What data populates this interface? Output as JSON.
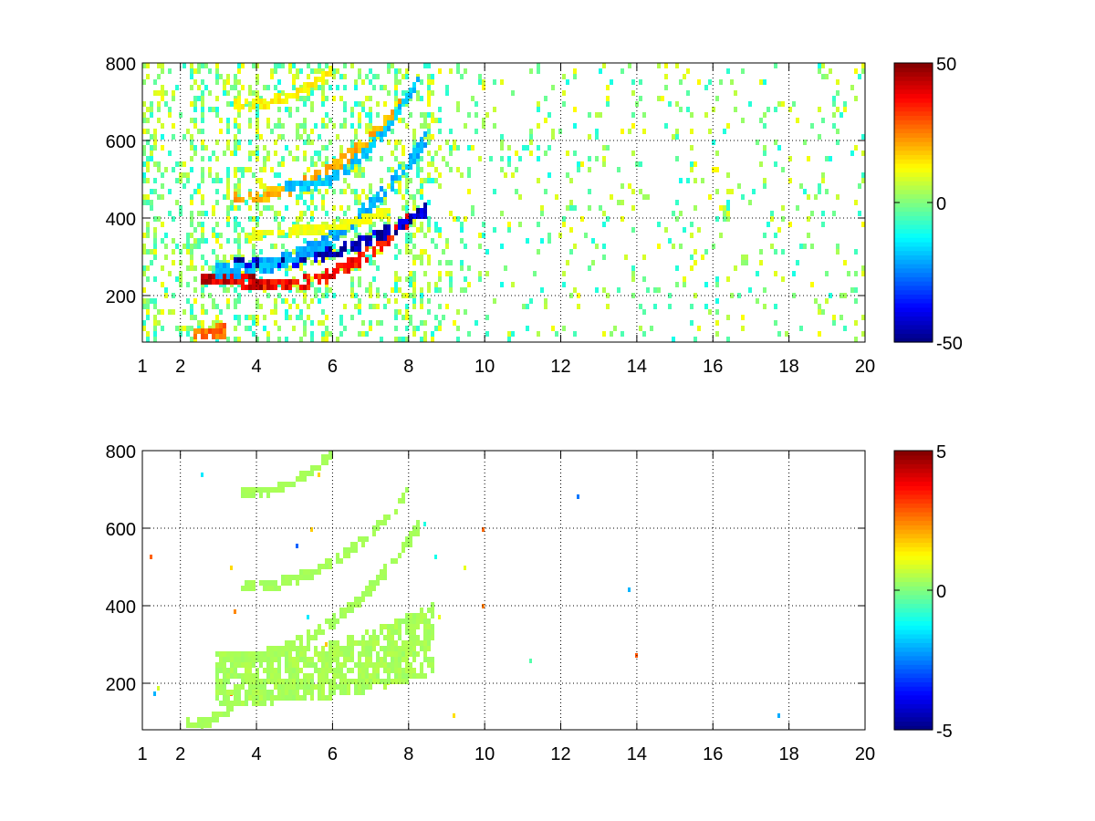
{
  "chart_data": [
    {
      "type": "heatmap",
      "title": "",
      "xlabel": "",
      "ylabel": "",
      "xlim": [
        1,
        20
      ],
      "ylim": [
        80,
        800
      ],
      "x_ticks": [
        1,
        2,
        4,
        6,
        8,
        10,
        12,
        14,
        16,
        18,
        20
      ],
      "y_ticks": [
        200,
        400,
        600,
        800
      ],
      "grid": true,
      "colormap": "jet",
      "colorbar": {
        "range": [
          -50,
          50
        ],
        "ticks": [
          50,
          0,
          -50
        ]
      },
      "features": [
        {
          "kind": "arc",
          "value": 45,
          "x_start": 2.6,
          "x_end": 4.2,
          "y_start": 245,
          "y_end": 225,
          "thickness": 22
        },
        {
          "kind": "arc",
          "value": 40,
          "x_start": 4.2,
          "x_end": 8.0,
          "y_start": 225,
          "y_end": 400,
          "thickness": 18
        },
        {
          "kind": "arc",
          "value": -48,
          "x_start": 3.4,
          "x_end": 8.4,
          "y_start": 280,
          "y_end": 420,
          "thickness": 16
        },
        {
          "kind": "arc",
          "value": -22,
          "x_start": 3.0,
          "x_end": 8.4,
          "y_start": 265,
          "y_end": 600,
          "thickness": 22
        },
        {
          "kind": "arc",
          "value": 22,
          "x_start": 3.4,
          "x_end": 7.8,
          "y_start": 455,
          "y_end": 700,
          "thickness": 18
        },
        {
          "kind": "arc",
          "value": -20,
          "x_start": 4.8,
          "x_end": 8.2,
          "y_start": 480,
          "y_end": 760,
          "thickness": 14
        },
        {
          "kind": "arc",
          "value": 15,
          "x_start": 3.4,
          "x_end": 5.9,
          "y_start": 690,
          "y_end": 780,
          "thickness": 12
        },
        {
          "kind": "arc",
          "value": 30,
          "x_start": 2.4,
          "x_end": 3.2,
          "y_start": 100,
          "y_end": 115,
          "thickness": 22
        },
        {
          "kind": "arc",
          "value": 12,
          "x_start": 3.8,
          "x_end": 7.5,
          "y_start": 360,
          "y_end": 420,
          "thickness": 10
        }
      ]
    },
    {
      "type": "heatmap",
      "title": "",
      "xlabel": "",
      "ylabel": "",
      "xlim": [
        1,
        20
      ],
      "ylim": [
        80,
        800
      ],
      "x_ticks": [
        1,
        2,
        4,
        6,
        8,
        10,
        12,
        14,
        16,
        18,
        20
      ],
      "y_ticks": [
        200,
        400,
        600,
        800
      ],
      "grid": true,
      "colormap": "jet",
      "colorbar": {
        "range": [
          -5,
          5
        ],
        "ticks": [
          5,
          0,
          -5
        ]
      },
      "features": [
        {
          "kind": "region",
          "value": 0.4,
          "x_start": 3.0,
          "x_end": 8.6,
          "y_low_start": 150,
          "y_low_end": 230,
          "y_high_start": 270,
          "y_high_end": 400
        },
        {
          "kind": "arc",
          "value": 0.4,
          "x_start": 3.0,
          "x_end": 8.2,
          "y_start": 260,
          "y_end": 600,
          "thickness": 16
        },
        {
          "kind": "arc",
          "value": 0.4,
          "x_start": 3.6,
          "x_end": 8.0,
          "y_start": 450,
          "y_end": 700,
          "thickness": 14
        },
        {
          "kind": "arc",
          "value": 0.4,
          "x_start": 3.6,
          "x_end": 5.9,
          "y_start": 690,
          "y_end": 790,
          "thickness": 10
        },
        {
          "kind": "arc",
          "value": 0.4,
          "x_start": 2.2,
          "x_end": 3.4,
          "y_start": 95,
          "y_end": 150,
          "thickness": 12
        }
      ]
    }
  ]
}
